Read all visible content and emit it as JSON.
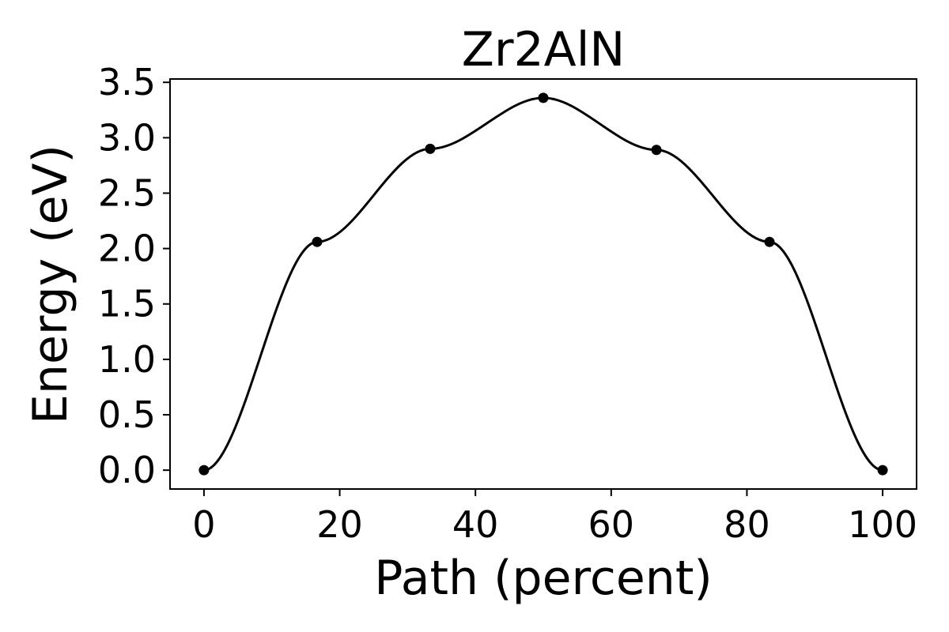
{
  "chart_data": {
    "type": "line",
    "title": "Zr2AlN",
    "xlabel": "Path (percent)",
    "ylabel": "Energy (eV)",
    "xlim": [
      -5,
      105
    ],
    "ylim": [
      -0.17,
      3.53
    ],
    "xticks": [
      0,
      20,
      40,
      60,
      80,
      100
    ],
    "xtick_labels": [
      "0",
      "20",
      "40",
      "60",
      "80",
      "100"
    ],
    "yticks": [
      0.0,
      0.5,
      1.0,
      1.5,
      2.0,
      2.5,
      3.0,
      3.5
    ],
    "ytick_labels": [
      "0.0",
      "0.5",
      "1.0",
      "1.5",
      "2.0",
      "2.5",
      "3.0",
      "3.5"
    ],
    "grid": false,
    "series": [
      {
        "x": [
          0,
          16.67,
          33.33,
          50,
          66.67,
          83.33,
          100
        ],
        "y": [
          0.0,
          2.06,
          2.9,
          3.36,
          2.89,
          2.06,
          0.0
        ],
        "color": "#000000"
      }
    ]
  }
}
